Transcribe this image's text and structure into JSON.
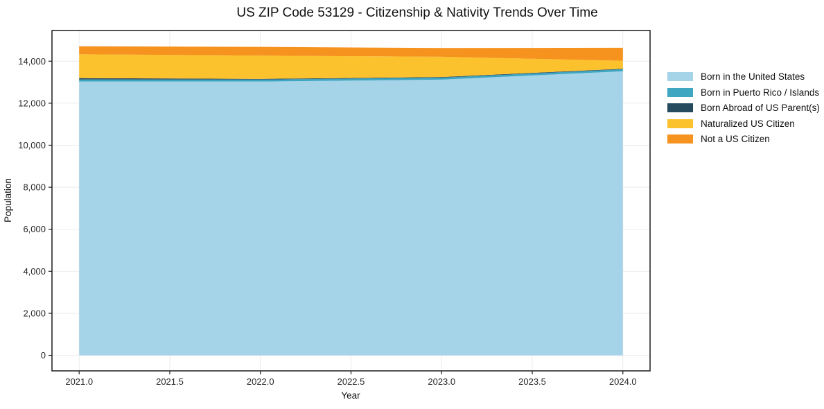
{
  "chart_data": {
    "type": "area",
    "stacked": true,
    "title": "US ZIP Code 53129 - Citizenship & Nativity Trends Over Time",
    "xlabel": "Year",
    "ylabel": "Population",
    "x": [
      2021,
      2022,
      2023,
      2024
    ],
    "series": [
      {
        "name": "Born in the United States",
        "color": "#a5d3e8",
        "values": [
          13030,
          13030,
          13120,
          13520
        ]
      },
      {
        "name": "Born in Puerto Rico / Islands",
        "color": "#3fa6c2",
        "values": [
          100,
          95,
          95,
          95
        ]
      },
      {
        "name": "Born Abroad of US Parent(s)",
        "color": "#264a5e",
        "values": [
          65,
          30,
          30,
          25
        ]
      },
      {
        "name": "Naturalized US Citizen",
        "color": "#fcc22d",
        "values": [
          1135,
          1110,
          965,
          380
        ]
      },
      {
        "name": "Not a US Citizen",
        "color": "#f6921e",
        "values": [
          380,
          415,
          415,
          620
        ]
      }
    ],
    "x_ticks": [
      2021.0,
      2021.5,
      2022.0,
      2022.5,
      2023.0,
      2023.5,
      2024.0
    ],
    "x_tick_labels": [
      "2021.0",
      "2021.5",
      "2022.0",
      "2022.5",
      "2023.0",
      "2023.5",
      "2024.0"
    ],
    "y_ticks": [
      0,
      2000,
      4000,
      6000,
      8000,
      10000,
      12000,
      14000
    ],
    "y_tick_labels": [
      "0",
      "2,000",
      "4,000",
      "6,000",
      "8,000",
      "10,000",
      "12,000",
      "14,000"
    ],
    "xlim": [
      2020.85,
      2024.15
    ],
    "ylim": [
      -740,
      15460
    ],
    "grid": true,
    "legend_position": "right"
  }
}
